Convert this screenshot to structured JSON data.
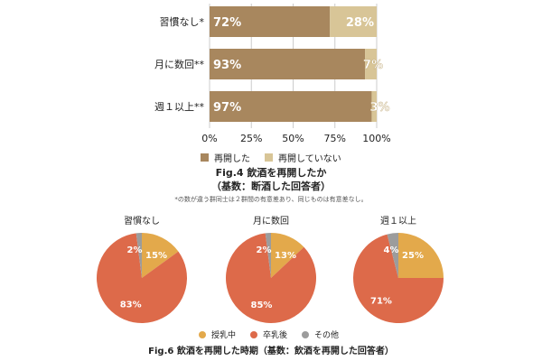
{
  "colors": {
    "resumed": "#a8875e",
    "not_resumed": "#d8c597",
    "breastfeeding": "#e3a94b",
    "after_weaning": "#dd6a4a",
    "other": "#9c9c9c"
  },
  "fig4": {
    "caption_line1": "Fig.4 飲酒を再開したか",
    "caption_line2": "（基数：断酒した回答者）",
    "note": "*の数が違う群同士は２群間の有意差あり、同じものは有意差なし。"
  },
  "fig6": {
    "caption": "Fig.6 飲酒を再開した時期（基数：飲酒を再開した回答者）"
  },
  "chart_data": [
    {
      "type": "bar",
      "orientation": "horizontal",
      "stacked": true,
      "categories": [
        "習慣なし*",
        "月に数回**",
        "週１以上**"
      ],
      "series": [
        {
          "name": "再開した",
          "values": [
            72,
            93,
            97
          ],
          "labels": [
            "72%",
            "93%",
            "97%"
          ]
        },
        {
          "name": "再開していない",
          "values": [
            28,
            7,
            3
          ],
          "labels": [
            "28%",
            "7%",
            "3%"
          ]
        }
      ],
      "xlim": [
        0,
        100
      ],
      "x_ticks": [
        "0%",
        "25%",
        "50%",
        "75%",
        "100%"
      ],
      "grid": true,
      "legend": "bottom"
    },
    {
      "type": "pie",
      "title": "習慣なし",
      "slices": [
        {
          "name": "授乳中",
          "value": 15,
          "label": "15%"
        },
        {
          "name": "卒乳後",
          "value": 83,
          "label": "83%"
        },
        {
          "name": "その他",
          "value": 2,
          "label": "2%"
        }
      ]
    },
    {
      "type": "pie",
      "title": "月に数回",
      "slices": [
        {
          "name": "授乳中",
          "value": 13,
          "label": "13%"
        },
        {
          "name": "卒乳後",
          "value": 85,
          "label": "85%"
        },
        {
          "name": "その他",
          "value": 2,
          "label": "2%"
        }
      ]
    },
    {
      "type": "pie",
      "title": "週１以上",
      "slices": [
        {
          "name": "授乳中",
          "value": 25,
          "label": "25%"
        },
        {
          "name": "卒乳後",
          "value": 71,
          "label": "71%"
        },
        {
          "name": "その他",
          "value": 4,
          "label": "4%"
        }
      ]
    }
  ]
}
